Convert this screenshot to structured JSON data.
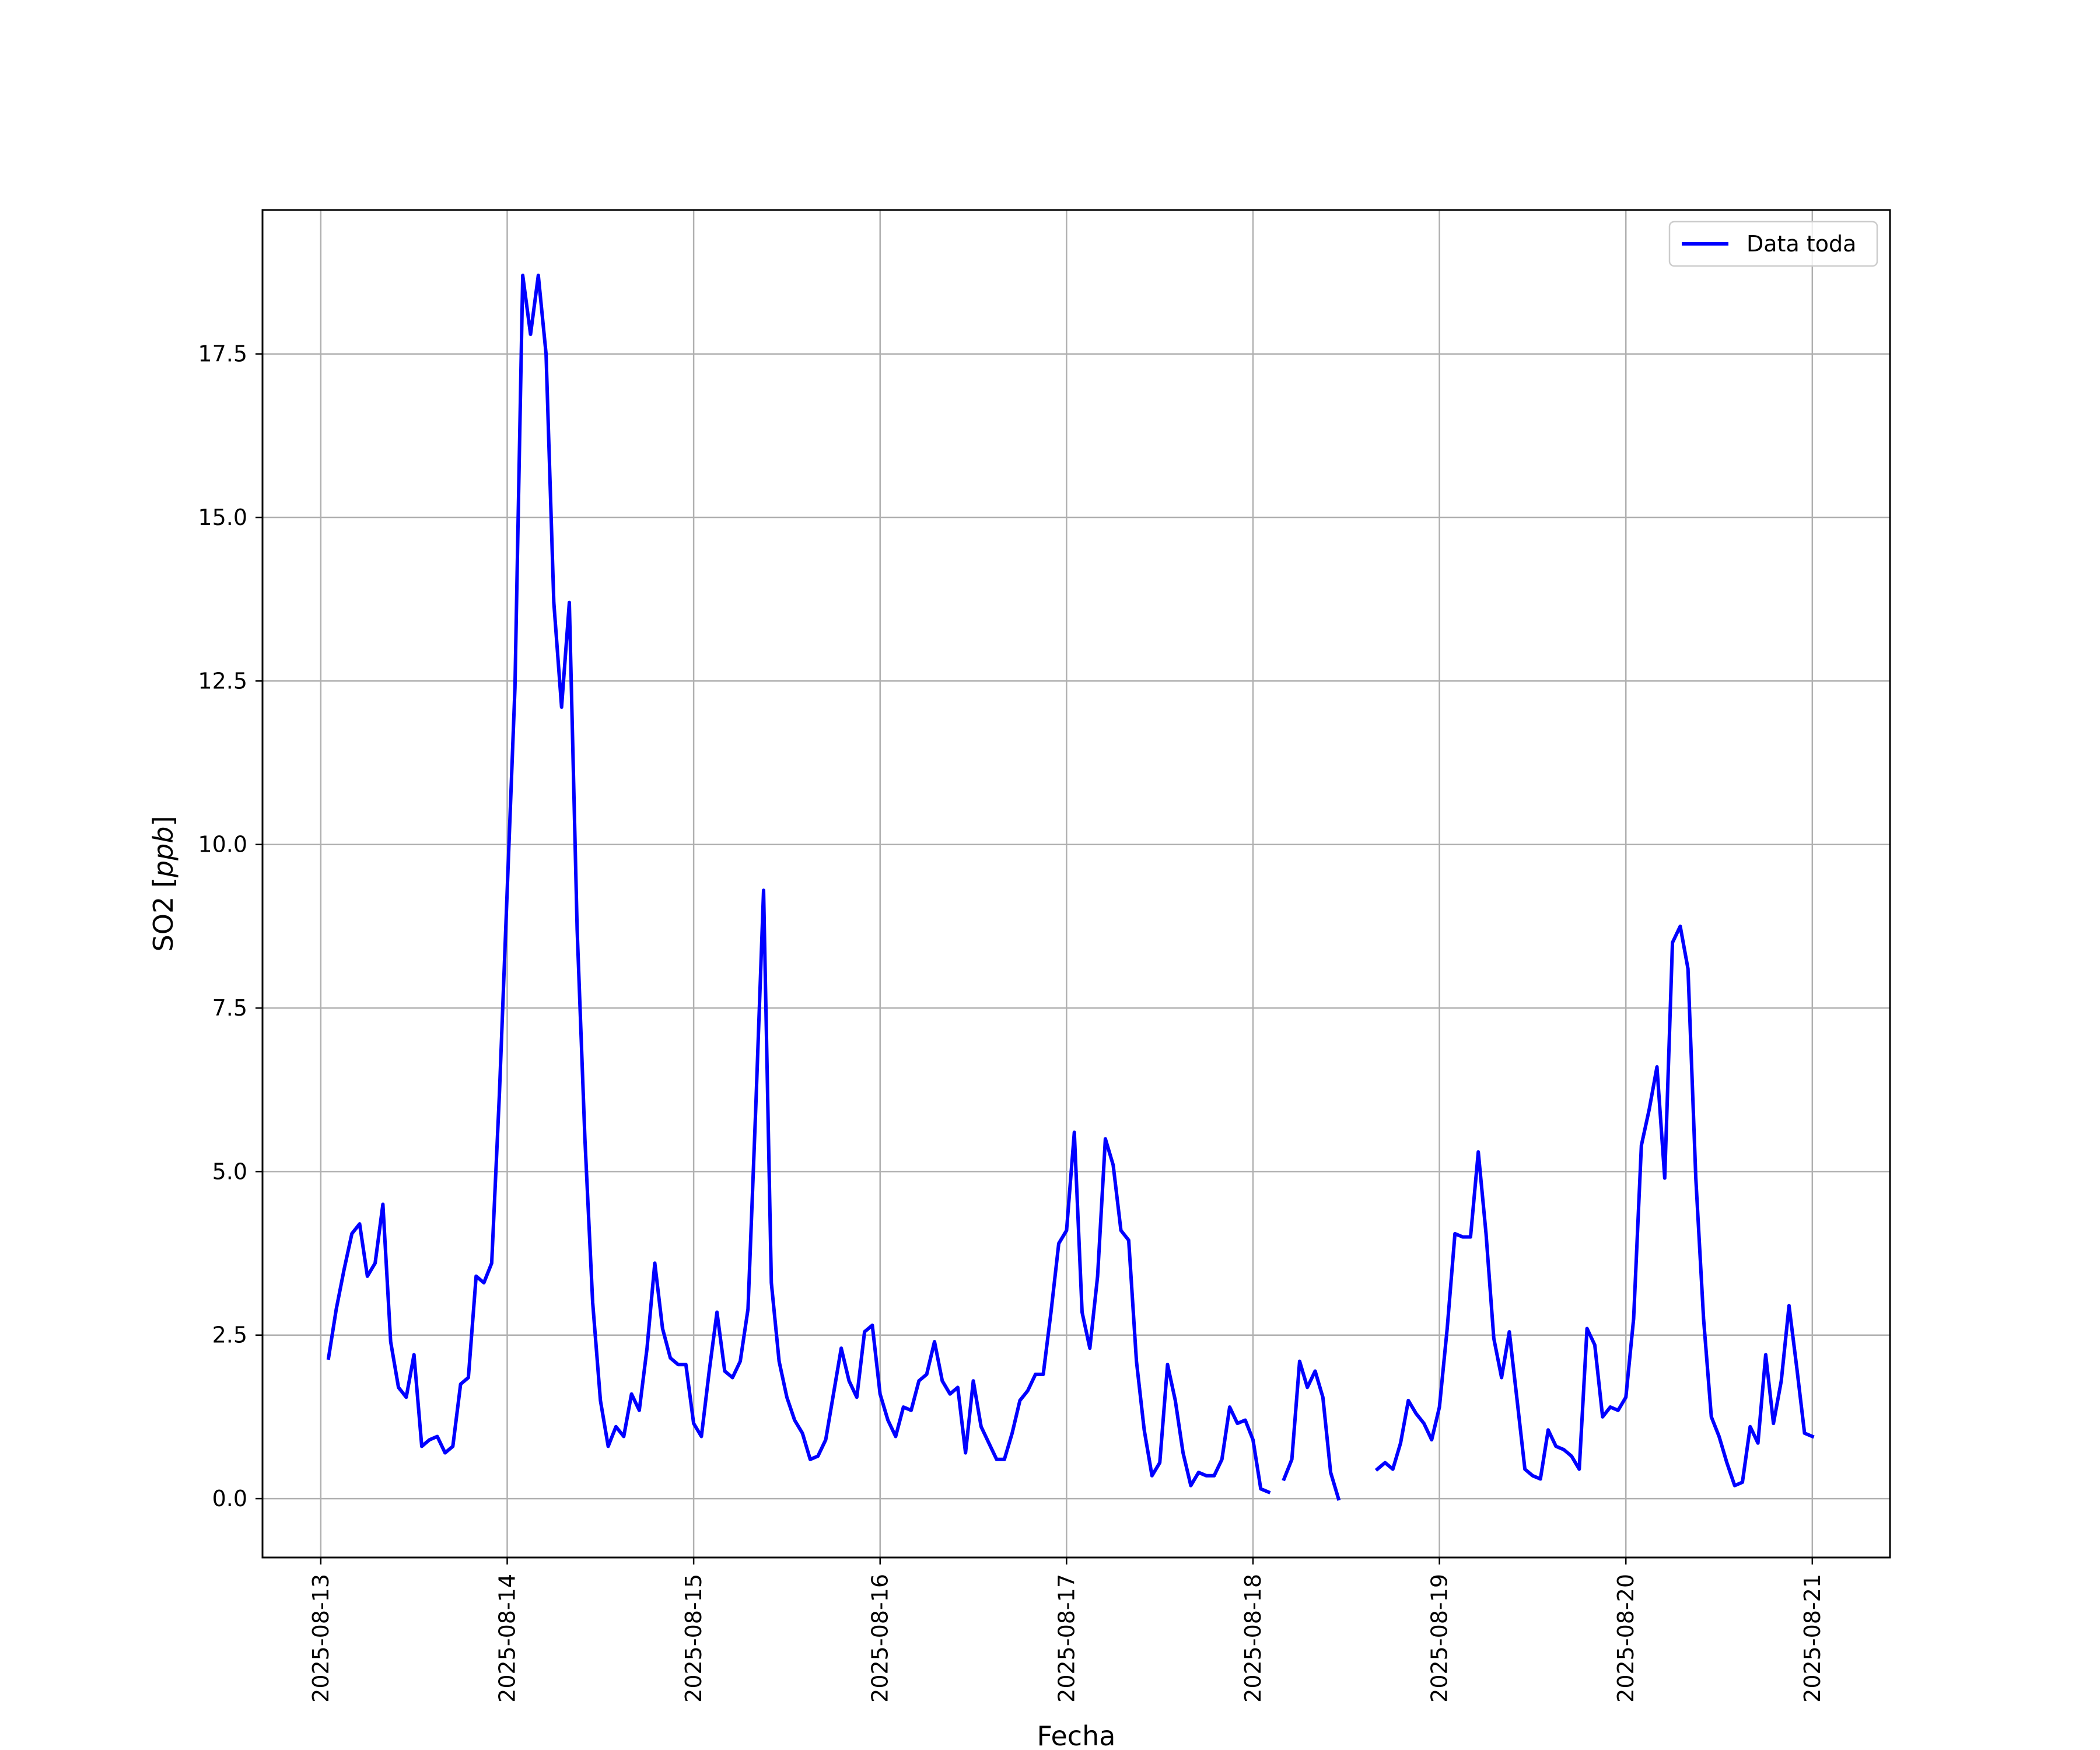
{
  "chart_data": {
    "type": "line",
    "xlabel": "Fecha",
    "ylabel": "SO2 [ppb]",
    "ylabel_prefix": "SO2 [",
    "ylabel_italic": "ppb",
    "ylabel_suffix": "]",
    "ylim": [
      -0.9,
      19.7
    ],
    "xlim": [
      "2025-08-12 16:30",
      "2025-08-21 10:00"
    ],
    "grid": true,
    "legend_position": "upper right",
    "x_ticks": [
      "2025-08-13",
      "2025-08-14",
      "2025-08-15",
      "2025-08-16",
      "2025-08-17",
      "2025-08-18",
      "2025-08-19",
      "2025-08-20",
      "2025-08-21"
    ],
    "y_ticks": [
      "0.0",
      "2.5",
      "5.0",
      "7.5",
      "10.0",
      "12.5",
      "15.0",
      "17.5"
    ],
    "series": [
      {
        "name": "Data toda",
        "color": "#0000ff",
        "start": "2025-08-13 01:00",
        "interval_hours": 1,
        "values": [
          2.15,
          2.9,
          3.5,
          4.05,
          4.2,
          3.4,
          3.6,
          4.5,
          2.4,
          1.7,
          1.55,
          2.2,
          0.8,
          0.9,
          0.95,
          0.7,
          0.8,
          1.75,
          1.85,
          3.4,
          3.3,
          3.6,
          6.2,
          9.3,
          12.4,
          18.7,
          17.8,
          18.7,
          17.5,
          13.7,
          12.1,
          13.7,
          8.7,
          5.5,
          3.0,
          1.5,
          0.8,
          1.1,
          0.95,
          1.6,
          1.35,
          2.3,
          3.6,
          2.6,
          2.15,
          2.05,
          2.05,
          1.15,
          0.95,
          1.95,
          2.85,
          1.95,
          1.85,
          2.1,
          2.9,
          6.0,
          9.3,
          3.3,
          2.1,
          1.55,
          1.2,
          1.0,
          0.6,
          0.65,
          0.9,
          1.6,
          2.3,
          1.8,
          1.55,
          2.55,
          2.65,
          1.6,
          1.2,
          0.95,
          1.4,
          1.35,
          1.8,
          1.9,
          2.4,
          1.8,
          1.6,
          1.7,
          0.7,
          1.8,
          1.1,
          0.85,
          0.6,
          0.6,
          1.0,
          1.5,
          1.65,
          1.9,
          1.9,
          2.85,
          3.9,
          4.1,
          5.6,
          2.85,
          2.3,
          3.4,
          5.5,
          5.1,
          4.1,
          3.95,
          2.1,
          1.05,
          0.35,
          0.55,
          2.05,
          1.5,
          0.7,
          0.2,
          0.4,
          0.35,
          0.35,
          0.6,
          1.4,
          1.15,
          1.2,
          0.9,
          0.15,
          0.1,
          null,
          0.3,
          0.6,
          2.1,
          1.7,
          1.95,
          1.55,
          0.4,
          0.0,
          null,
          null,
          null,
          null,
          0.45,
          0.55,
          0.45,
          0.85,
          1.5,
          1.3,
          1.15,
          0.9,
          1.4,
          2.6,
          4.05,
          4.0,
          4.0,
          5.3,
          4.05,
          2.45,
          1.85,
          2.55,
          1.5,
          0.45,
          0.35,
          0.3,
          1.05,
          0.8,
          0.75,
          0.65,
          0.45,
          2.6,
          2.35,
          1.25,
          1.4,
          1.35,
          1.55,
          2.75,
          5.4,
          5.95,
          6.6,
          4.9,
          8.5,
          8.75,
          8.1,
          4.9,
          2.75,
          1.25,
          0.95,
          0.55,
          0.2,
          0.25,
          1.1,
          0.85,
          2.2,
          1.15,
          1.8,
          2.95,
          2.0,
          1.0,
          0.95
        ]
      }
    ]
  }
}
